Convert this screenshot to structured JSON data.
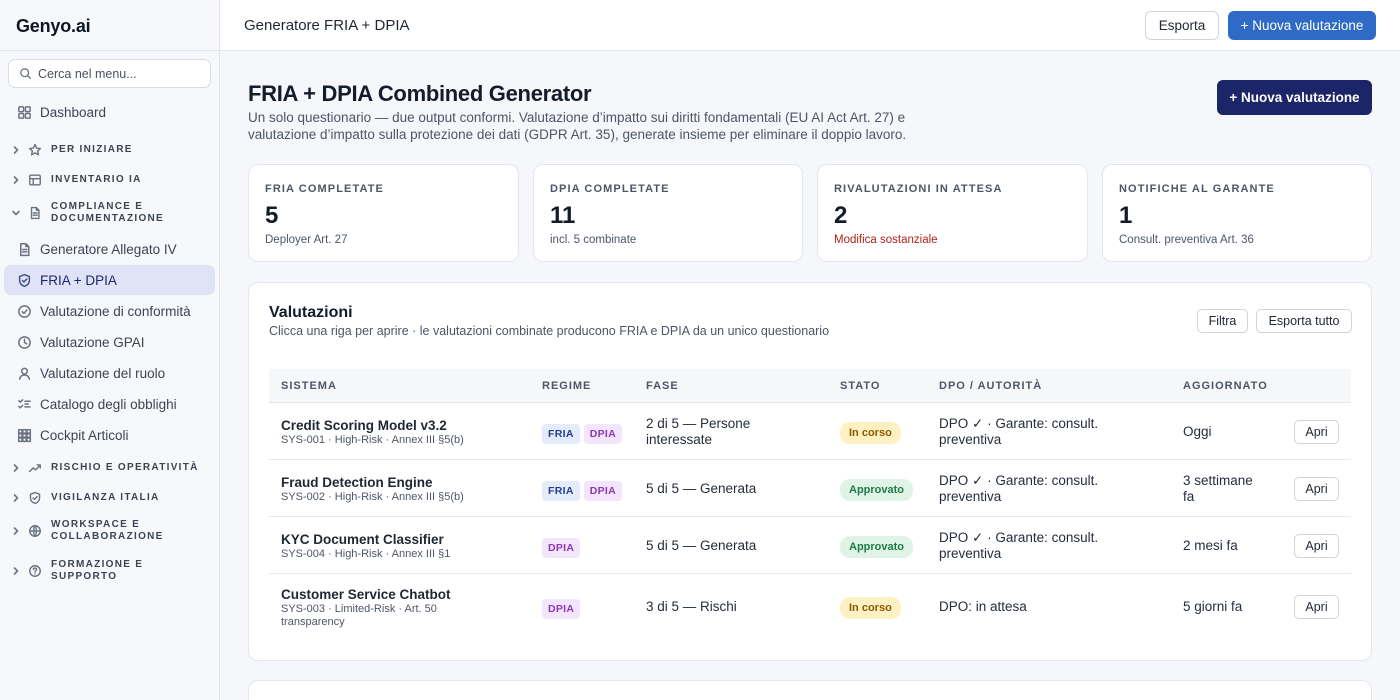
{
  "sidebar": {
    "logo": "Genyo.ai",
    "search_placeholder": "Cerca nel menu...",
    "dashboard": "Dashboard",
    "groups": {
      "per_iniziare": "PER INIZIARE",
      "inventario": "INVENTARIO IA",
      "compliance": "COMPLIANCE E DOCUMENTAZIONE",
      "rischio": "RISCHIO E OPERATIVITÀ",
      "vigilanza": "VIGILANZA ITALIA",
      "workspace": "WORKSPACE E COLLABORAZIONE",
      "formazione": "FORMAZIONE E SUPPORTO"
    },
    "items": [
      {
        "label": "Generatore Allegato IV",
        "icon": "document-icon"
      },
      {
        "label": "FRIA + DPIA",
        "icon": "shield-icon",
        "active": true
      },
      {
        "label": "Valutazione di conformità",
        "icon": "check-circle-icon"
      },
      {
        "label": "Valutazione GPAI",
        "icon": "clock-icon"
      },
      {
        "label": "Valutazione del ruolo",
        "icon": "user-icon"
      },
      {
        "label": "Catalogo degli obblighi",
        "icon": "checklist-icon"
      },
      {
        "label": "Cockpit Articoli",
        "icon": "grid-icon"
      }
    ]
  },
  "topbar": {
    "title": "Generatore FRIA + DPIA",
    "export_label": "Esporta",
    "new_label": "+ Nuova valutazione"
  },
  "header": {
    "title": "FRIA + DPIA Combined Generator",
    "description": "Un solo questionario — due output conformi. Valutazione d’impatto sui diritti fondamentali (EU AI Act Art. 27) e valutazione d’impatto sulla protezione dei dati (GDPR Art. 35), generate insieme per eliminare il doppio lavoro.",
    "new_label": "+ Nuova valutazione"
  },
  "stats": [
    {
      "label": "FRIA COMPLETATE",
      "value": "5",
      "note": "Deployer Art. 27"
    },
    {
      "label": "DPIA COMPLETATE",
      "value": "11",
      "note": "incl. 5 combinate"
    },
    {
      "label": "RIVALUTAZIONI IN ATTESA",
      "value": "2",
      "note": "Modifica sostanziale"
    },
    {
      "label": "NOTIFICHE AL GARANTE",
      "value": "1",
      "note": "Consult. preventiva Art. 36"
    }
  ],
  "table": {
    "title": "Valutazioni",
    "subtitle": "Clicca una riga per aprire · le valutazioni combinate producono FRIA e DPIA da un unico questionario",
    "filter_label": "Filtra",
    "export_all_label": "Esporta tutto",
    "columns": [
      "SISTEMA",
      "REGIME",
      "FASE",
      "STATO",
      "DPO / AUTORITÀ",
      "AGGIORNATO"
    ],
    "open_label": "Apri",
    "rows": [
      {
        "name": "Credit Scoring Model v3.2",
        "sub": "SYS-001 · High-Risk · Annex III §5(b)",
        "fria": "FRIA",
        "dpia": "DPIA",
        "phase": "2 di 5 — Persone interessate",
        "status": "In corso",
        "dpo": "DPO ✓ · Garante: consult. preventiva",
        "updated": "Oggi"
      },
      {
        "name": "Fraud Detection Engine",
        "sub": "SYS-002 · High-Risk · Annex III §5(b)",
        "fria": "FRIA",
        "dpia": "DPIA",
        "phase": "5 di 5 — Generata",
        "status": "Approvato",
        "dpo": "DPO ✓ · Garante: consult. preventiva",
        "updated": "3 settimane fa"
      },
      {
        "name": "KYC Document Classifier",
        "sub": "SYS-004 · High-Risk · Annex III §1",
        "fria": "",
        "dpia": "DPIA",
        "phase": "5 di 5 — Generata",
        "status": "Approvato",
        "dpo": "DPO ✓ · Garante: consult. preventiva",
        "updated": "2 mesi fa"
      },
      {
        "name": "Customer Service Chatbot",
        "sub": "SYS-003 · Limited-Risk · Art. 50 transparency",
        "fria": "",
        "dpia": "DPIA",
        "phase": "3 di 5 — Rischi",
        "status": "In corso",
        "dpo": "DPO: in attesa",
        "updated": "5 giorni fa"
      }
    ]
  },
  "colors": {
    "accent": "#2e6ac6",
    "navy": "#1b2567",
    "active_nav": "#dfe3f5",
    "warn": "#b42318"
  }
}
